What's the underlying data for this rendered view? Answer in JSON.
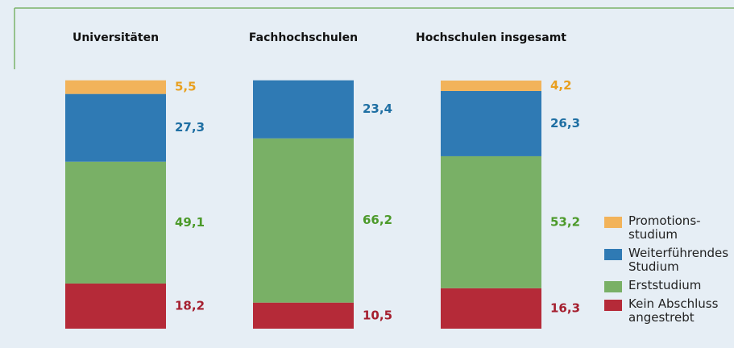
{
  "chart_data": {
    "type": "stacked-bar",
    "categories": [
      "Universitäten",
      "Fachhochschulen",
      "Hochschulen insgesamt"
    ],
    "ylim": [
      0,
      100
    ],
    "series": [
      {
        "name": "Kein Abschluss\nangestrebt",
        "color": "#b52a38",
        "label_color": "#a51f2f",
        "values": [
          18.2,
          10.5,
          16.3
        ],
        "value_labels": [
          "18,2",
          "10,5",
          "16,3"
        ]
      },
      {
        "name": "Erststudium",
        "color": "#79b066",
        "label_color": "#4c9a2a",
        "values": [
          49.1,
          66.2,
          53.2
        ],
        "value_labels": [
          "49,1",
          "66,2",
          "53,2"
        ]
      },
      {
        "name": "Weiterführendes\nStudium",
        "color": "#2f7ab4",
        "label_color": "#1f6fa3",
        "values": [
          27.3,
          23.4,
          26.3
        ],
        "value_labels": [
          "27,3",
          "23,4",
          "26,3"
        ]
      },
      {
        "name": "Promotions-\nstudium",
        "color": "#f2b35a",
        "label_color": "#e8a020",
        "values": [
          5.5,
          null,
          4.2
        ],
        "value_labels": [
          "5,5",
          null,
          "4,2"
        ]
      }
    ]
  }
}
